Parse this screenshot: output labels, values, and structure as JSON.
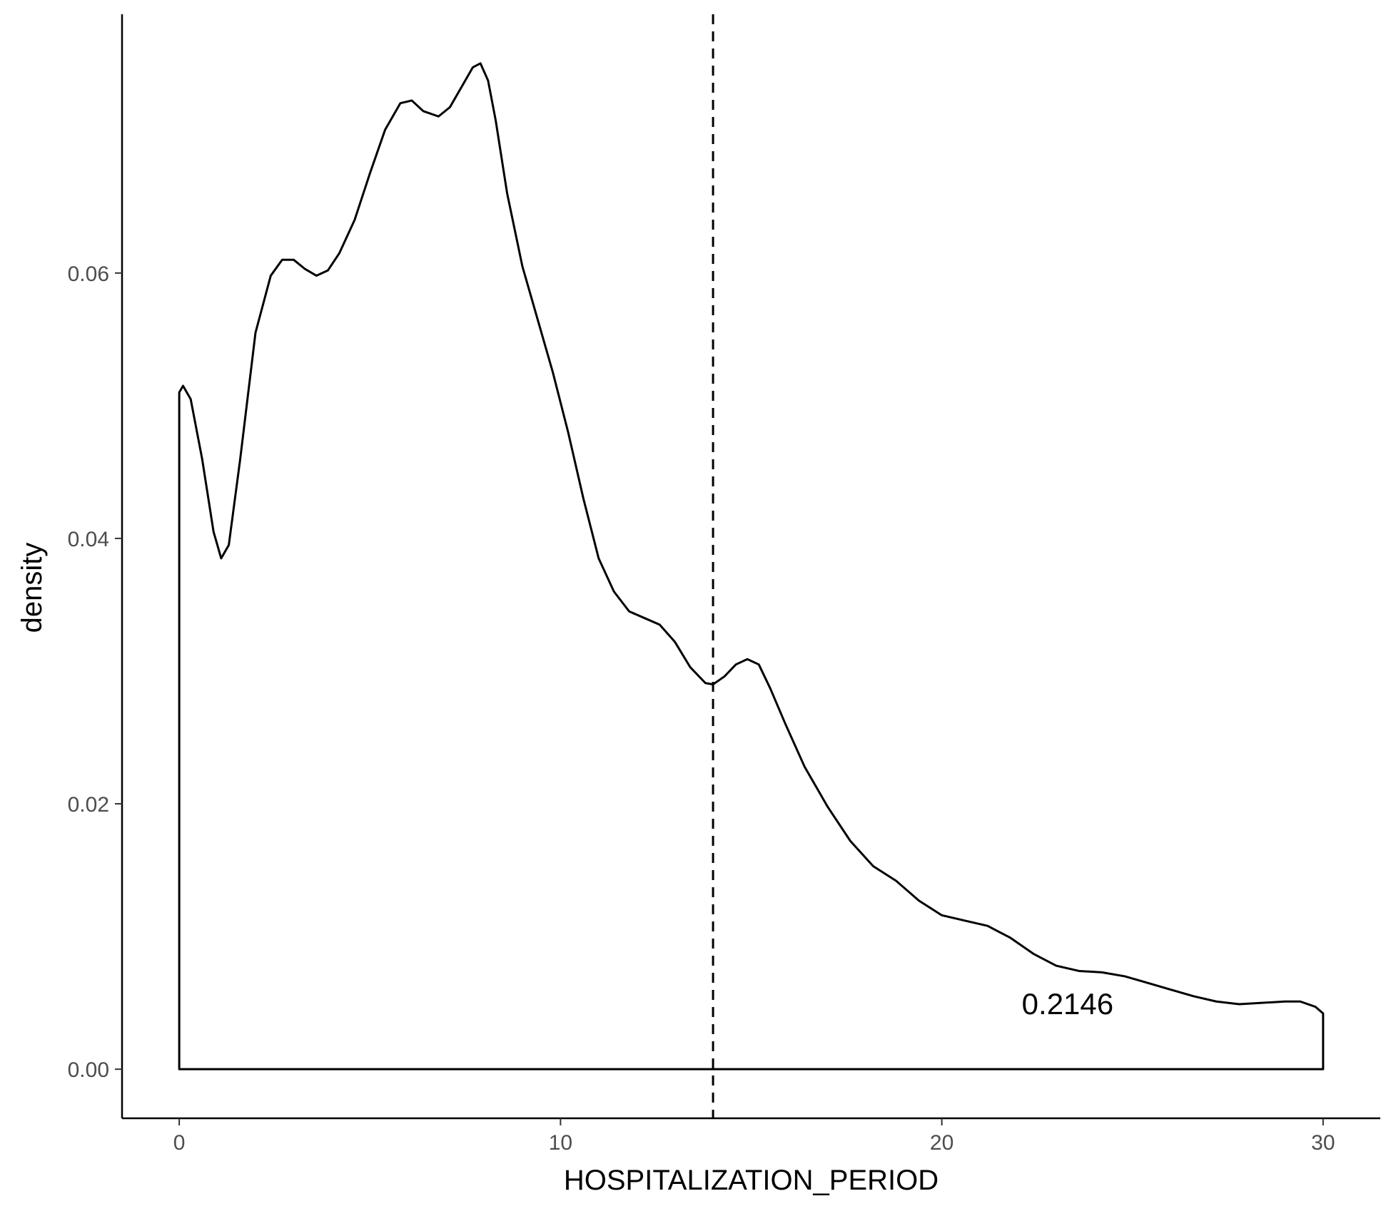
{
  "chart_data": {
    "type": "area",
    "title": "",
    "xlabel": "HOSPITALIZATION_PERIOD",
    "ylabel": "density",
    "xlim": [
      -1.5,
      31.5
    ],
    "ylim": [
      -0.0037,
      0.0795
    ],
    "x_ticks": [
      0,
      10,
      20,
      30
    ],
    "x_tick_labels": [
      "0",
      "10",
      "20",
      "30"
    ],
    "y_ticks": [
      0,
      0.02,
      0.04,
      0.06
    ],
    "y_tick_labels": [
      "0.00",
      "0.02",
      "0.04",
      "0.06"
    ],
    "grid": false,
    "legend": "none",
    "line_color": "#000000",
    "fill": "none",
    "series": [
      {
        "x": [
          0,
          0.1,
          0.3,
          0.6,
          0.9,
          1.1,
          1.3,
          1.6,
          2.0,
          2.4,
          2.7,
          3.0,
          3.3,
          3.6,
          3.9,
          4.2,
          4.6,
          5.0,
          5.4,
          5.8,
          6.1,
          6.4,
          6.8,
          7.1,
          7.4,
          7.7,
          7.9,
          8.1,
          8.3,
          8.6,
          9.0,
          9.4,
          9.8,
          10.2,
          10.6,
          11.0,
          11.4,
          11.8,
          12.2,
          12.6,
          13.0,
          13.4,
          13.8,
          14.0,
          14.3,
          14.6,
          14.9,
          15.2,
          15.5,
          15.9,
          16.4,
          17.0,
          17.6,
          18.2,
          18.8,
          19.4,
          20.0,
          20.6,
          21.2,
          21.8,
          22.4,
          23.0,
          23.6,
          24.2,
          24.8,
          25.4,
          26.0,
          26.6,
          27.2,
          27.8,
          28.4,
          29.0,
          29.4,
          29.8,
          30.0
        ],
        "y": [
          0.051,
          0.0515,
          0.0505,
          0.046,
          0.0405,
          0.0385,
          0.0395,
          0.046,
          0.0555,
          0.0598,
          0.061,
          0.061,
          0.0603,
          0.0598,
          0.0602,
          0.0615,
          0.064,
          0.0675,
          0.0708,
          0.0728,
          0.073,
          0.0722,
          0.0718,
          0.0725,
          0.074,
          0.0755,
          0.0758,
          0.0745,
          0.0715,
          0.066,
          0.0605,
          0.0565,
          0.0525,
          0.048,
          0.043,
          0.0385,
          0.036,
          0.0345,
          0.034,
          0.0335,
          0.0322,
          0.0303,
          0.0291,
          0.029,
          0.0296,
          0.0305,
          0.0309,
          0.0305,
          0.0287,
          0.026,
          0.0228,
          0.0198,
          0.0172,
          0.0153,
          0.0142,
          0.0127,
          0.0116,
          0.0112,
          0.0108,
          0.0099,
          0.0087,
          0.0078,
          0.0074,
          0.0073,
          0.007,
          0.0065,
          0.006,
          0.0055,
          0.0051,
          0.0049,
          0.005,
          0.0051,
          0.0051,
          0.0047,
          0.0042
        ]
      }
    ],
    "vline": {
      "x": 14.0,
      "style": "dashed"
    },
    "annotations": [
      {
        "text": "0.2146",
        "x": 23.3,
        "y": 0.0049
      }
    ]
  }
}
